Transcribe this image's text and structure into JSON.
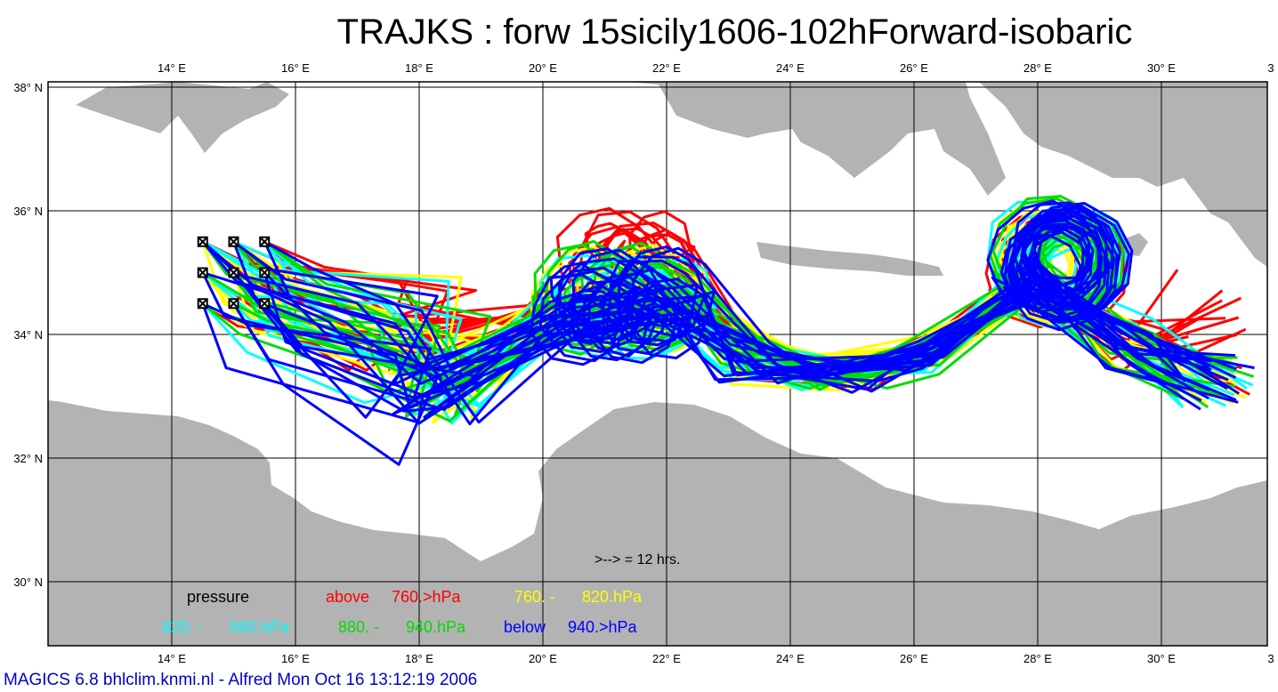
{
  "title": "TRAJKS : forw 15sicily1606-102hForward-isobaric",
  "axes": {
    "lon_labels": [
      "14° E",
      "16° E",
      "18° E",
      "20° E",
      "22° E",
      "24° E",
      "26° E",
      "28° E",
      "30° E",
      "3"
    ],
    "lat_labels": [
      "38° N",
      "36° N",
      "34° N",
      "32° N",
      "30° N"
    ]
  },
  "arrow_note": ">--> = 12 hrs.",
  "legend": {
    "pressure_label": "pressure",
    "above_word": "above",
    "above_value": "760.>hPa",
    "yellow_from": "760. -",
    "yellow_to": "820.hPa",
    "cyan_from": "820. -",
    "cyan_to": "880.hPa",
    "green_from": "880. -",
    "green_to": "940.hPa",
    "below_word": "below",
    "below_value": "940.>hPa"
  },
  "colors": {
    "above_760": "#ff0000",
    "760_820": "#ffff00",
    "820_880": "#00ffff",
    "880_940": "#00dd00",
    "below_940": "#0000ff",
    "land": "#b3b3b3",
    "sea": "#ffffff"
  },
  "start_points": [
    {
      "lon": 14.5,
      "lat": 35.5
    },
    {
      "lon": 15.0,
      "lat": 35.5
    },
    {
      "lon": 15.5,
      "lat": 35.5
    },
    {
      "lon": 14.5,
      "lat": 35.0
    },
    {
      "lon": 15.0,
      "lat": 35.0
    },
    {
      "lon": 15.5,
      "lat": 35.0
    },
    {
      "lon": 14.5,
      "lat": 34.5
    },
    {
      "lon": 15.0,
      "lat": 34.5
    },
    {
      "lon": 15.5,
      "lat": 34.5
    }
  ],
  "footer": "MAGICS 6.8 bhlclim.knmi.nl - Alfred Mon Oct 16 13:12:19 2006"
}
